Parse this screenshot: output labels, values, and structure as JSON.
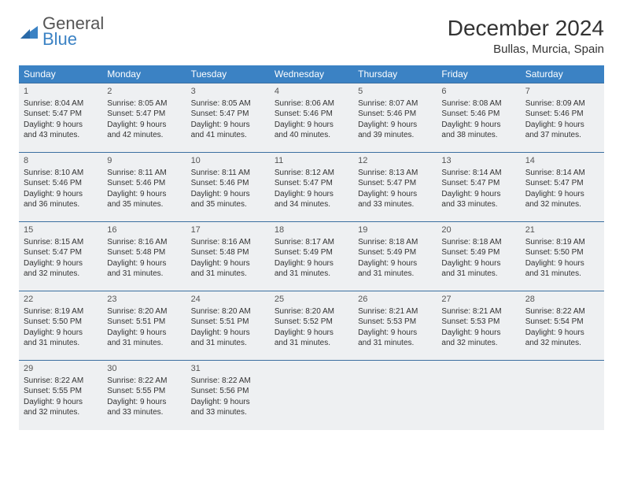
{
  "logo": {
    "line1": "General",
    "line2": "Blue"
  },
  "title": "December 2024",
  "location": "Bullas, Murcia, Spain",
  "colors": {
    "header_bg": "#3b82c4",
    "header_text": "#ffffff",
    "cell_bg": "#eef0f2",
    "cell_border": "#3b6fa0",
    "text": "#333333",
    "logo_gray": "#555555",
    "logo_blue": "#3b82c4",
    "page_bg": "#ffffff"
  },
  "typography": {
    "title_fontsize": 28,
    "location_fontsize": 15,
    "dayheader_fontsize": 12,
    "cell_fontsize": 10,
    "logo_fontsize": 22
  },
  "day_headers": [
    "Sunday",
    "Monday",
    "Tuesday",
    "Wednesday",
    "Thursday",
    "Friday",
    "Saturday"
  ],
  "weeks": [
    [
      {
        "num": "1",
        "sunrise": "Sunrise: 8:04 AM",
        "sunset": "Sunset: 5:47 PM",
        "day1": "Daylight: 9 hours",
        "day2": "and 43 minutes."
      },
      {
        "num": "2",
        "sunrise": "Sunrise: 8:05 AM",
        "sunset": "Sunset: 5:47 PM",
        "day1": "Daylight: 9 hours",
        "day2": "and 42 minutes."
      },
      {
        "num": "3",
        "sunrise": "Sunrise: 8:05 AM",
        "sunset": "Sunset: 5:47 PM",
        "day1": "Daylight: 9 hours",
        "day2": "and 41 minutes."
      },
      {
        "num": "4",
        "sunrise": "Sunrise: 8:06 AM",
        "sunset": "Sunset: 5:46 PM",
        "day1": "Daylight: 9 hours",
        "day2": "and 40 minutes."
      },
      {
        "num": "5",
        "sunrise": "Sunrise: 8:07 AM",
        "sunset": "Sunset: 5:46 PM",
        "day1": "Daylight: 9 hours",
        "day2": "and 39 minutes."
      },
      {
        "num": "6",
        "sunrise": "Sunrise: 8:08 AM",
        "sunset": "Sunset: 5:46 PM",
        "day1": "Daylight: 9 hours",
        "day2": "and 38 minutes."
      },
      {
        "num": "7",
        "sunrise": "Sunrise: 8:09 AM",
        "sunset": "Sunset: 5:46 PM",
        "day1": "Daylight: 9 hours",
        "day2": "and 37 minutes."
      }
    ],
    [
      {
        "num": "8",
        "sunrise": "Sunrise: 8:10 AM",
        "sunset": "Sunset: 5:46 PM",
        "day1": "Daylight: 9 hours",
        "day2": "and 36 minutes."
      },
      {
        "num": "9",
        "sunrise": "Sunrise: 8:11 AM",
        "sunset": "Sunset: 5:46 PM",
        "day1": "Daylight: 9 hours",
        "day2": "and 35 minutes."
      },
      {
        "num": "10",
        "sunrise": "Sunrise: 8:11 AM",
        "sunset": "Sunset: 5:46 PM",
        "day1": "Daylight: 9 hours",
        "day2": "and 35 minutes."
      },
      {
        "num": "11",
        "sunrise": "Sunrise: 8:12 AM",
        "sunset": "Sunset: 5:47 PM",
        "day1": "Daylight: 9 hours",
        "day2": "and 34 minutes."
      },
      {
        "num": "12",
        "sunrise": "Sunrise: 8:13 AM",
        "sunset": "Sunset: 5:47 PM",
        "day1": "Daylight: 9 hours",
        "day2": "and 33 minutes."
      },
      {
        "num": "13",
        "sunrise": "Sunrise: 8:14 AM",
        "sunset": "Sunset: 5:47 PM",
        "day1": "Daylight: 9 hours",
        "day2": "and 33 minutes."
      },
      {
        "num": "14",
        "sunrise": "Sunrise: 8:14 AM",
        "sunset": "Sunset: 5:47 PM",
        "day1": "Daylight: 9 hours",
        "day2": "and 32 minutes."
      }
    ],
    [
      {
        "num": "15",
        "sunrise": "Sunrise: 8:15 AM",
        "sunset": "Sunset: 5:47 PM",
        "day1": "Daylight: 9 hours",
        "day2": "and 32 minutes."
      },
      {
        "num": "16",
        "sunrise": "Sunrise: 8:16 AM",
        "sunset": "Sunset: 5:48 PM",
        "day1": "Daylight: 9 hours",
        "day2": "and 31 minutes."
      },
      {
        "num": "17",
        "sunrise": "Sunrise: 8:16 AM",
        "sunset": "Sunset: 5:48 PM",
        "day1": "Daylight: 9 hours",
        "day2": "and 31 minutes."
      },
      {
        "num": "18",
        "sunrise": "Sunrise: 8:17 AM",
        "sunset": "Sunset: 5:49 PM",
        "day1": "Daylight: 9 hours",
        "day2": "and 31 minutes."
      },
      {
        "num": "19",
        "sunrise": "Sunrise: 8:18 AM",
        "sunset": "Sunset: 5:49 PM",
        "day1": "Daylight: 9 hours",
        "day2": "and 31 minutes."
      },
      {
        "num": "20",
        "sunrise": "Sunrise: 8:18 AM",
        "sunset": "Sunset: 5:49 PM",
        "day1": "Daylight: 9 hours",
        "day2": "and 31 minutes."
      },
      {
        "num": "21",
        "sunrise": "Sunrise: 8:19 AM",
        "sunset": "Sunset: 5:50 PM",
        "day1": "Daylight: 9 hours",
        "day2": "and 31 minutes."
      }
    ],
    [
      {
        "num": "22",
        "sunrise": "Sunrise: 8:19 AM",
        "sunset": "Sunset: 5:50 PM",
        "day1": "Daylight: 9 hours",
        "day2": "and 31 minutes."
      },
      {
        "num": "23",
        "sunrise": "Sunrise: 8:20 AM",
        "sunset": "Sunset: 5:51 PM",
        "day1": "Daylight: 9 hours",
        "day2": "and 31 minutes."
      },
      {
        "num": "24",
        "sunrise": "Sunrise: 8:20 AM",
        "sunset": "Sunset: 5:51 PM",
        "day1": "Daylight: 9 hours",
        "day2": "and 31 minutes."
      },
      {
        "num": "25",
        "sunrise": "Sunrise: 8:20 AM",
        "sunset": "Sunset: 5:52 PM",
        "day1": "Daylight: 9 hours",
        "day2": "and 31 minutes."
      },
      {
        "num": "26",
        "sunrise": "Sunrise: 8:21 AM",
        "sunset": "Sunset: 5:53 PM",
        "day1": "Daylight: 9 hours",
        "day2": "and 31 minutes."
      },
      {
        "num": "27",
        "sunrise": "Sunrise: 8:21 AM",
        "sunset": "Sunset: 5:53 PM",
        "day1": "Daylight: 9 hours",
        "day2": "and 32 minutes."
      },
      {
        "num": "28",
        "sunrise": "Sunrise: 8:22 AM",
        "sunset": "Sunset: 5:54 PM",
        "day1": "Daylight: 9 hours",
        "day2": "and 32 minutes."
      }
    ],
    [
      {
        "num": "29",
        "sunrise": "Sunrise: 8:22 AM",
        "sunset": "Sunset: 5:55 PM",
        "day1": "Daylight: 9 hours",
        "day2": "and 32 minutes."
      },
      {
        "num": "30",
        "sunrise": "Sunrise: 8:22 AM",
        "sunset": "Sunset: 5:55 PM",
        "day1": "Daylight: 9 hours",
        "day2": "and 33 minutes."
      },
      {
        "num": "31",
        "sunrise": "Sunrise: 8:22 AM",
        "sunset": "Sunset: 5:56 PM",
        "day1": "Daylight: 9 hours",
        "day2": "and 33 minutes."
      },
      null,
      null,
      null,
      null
    ]
  ]
}
